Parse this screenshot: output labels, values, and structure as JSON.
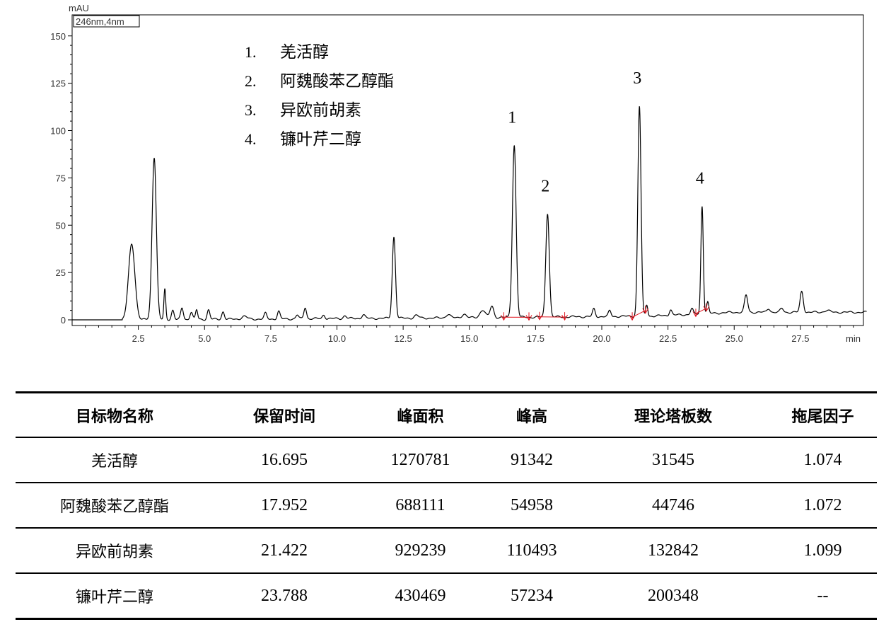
{
  "chart_data": {
    "type": "line",
    "y_unit": "mAU",
    "x_unit": "min",
    "detector_label": "246nm,4nm",
    "xlim": [
      0.0,
      30.0
    ],
    "ylim": [
      -5,
      157
    ],
    "x_ticks": [
      "2.5",
      "5.0",
      "7.5",
      "10.0",
      "12.5",
      "15.0",
      "17.5",
      "20.0",
      "22.5",
      "25.0",
      "27.5"
    ],
    "y_ticks": [
      "0",
      "25",
      "50",
      "75",
      "100",
      "125",
      "150"
    ],
    "baseline": 0,
    "peaks": [
      {
        "t": 2.25,
        "h": 40,
        "w": 0.12
      },
      {
        "t": 3.1,
        "h": 86,
        "w": 0.08
      },
      {
        "t": 3.5,
        "h": 16,
        "w": 0.035
      },
      {
        "t": 3.8,
        "h": 5,
        "w": 0.05
      },
      {
        "t": 4.15,
        "h": 6,
        "w": 0.05
      },
      {
        "t": 4.5,
        "h": 4,
        "w": 0.05
      },
      {
        "t": 4.7,
        "h": 5,
        "w": 0.04
      },
      {
        "t": 5.15,
        "h": 5,
        "w": 0.05
      },
      {
        "t": 5.7,
        "h": 4,
        "w": 0.05
      },
      {
        "t": 6.5,
        "h": 1.5,
        "w": 0.1
      },
      {
        "t": 7.3,
        "h": 3,
        "w": 0.05
      },
      {
        "t": 7.8,
        "h": 4,
        "w": 0.05
      },
      {
        "t": 8.5,
        "h": 2,
        "w": 0.05
      },
      {
        "t": 8.8,
        "h": 6,
        "w": 0.05
      },
      {
        "t": 9.5,
        "h": 2,
        "w": 0.05
      },
      {
        "t": 10.3,
        "h": 1.5,
        "w": 0.06
      },
      {
        "t": 11.0,
        "h": 2,
        "w": 0.06
      },
      {
        "t": 12.15,
        "h": 43,
        "w": 0.06
      },
      {
        "t": 13.0,
        "h": 1.5,
        "w": 0.08
      },
      {
        "t": 14.2,
        "h": 2,
        "w": 0.08
      },
      {
        "t": 14.8,
        "h": 2,
        "w": 0.08
      },
      {
        "t": 15.5,
        "h": 4,
        "w": 0.1
      },
      {
        "t": 15.85,
        "h": 6,
        "w": 0.07
      },
      {
        "t": 16.695,
        "h": 91,
        "w": 0.07
      },
      {
        "t": 17.952,
        "h": 55,
        "w": 0.065
      },
      {
        "t": 19.7,
        "h": 4,
        "w": 0.05
      },
      {
        "t": 20.3,
        "h": 3,
        "w": 0.05
      },
      {
        "t": 21.422,
        "h": 111,
        "w": 0.06
      },
      {
        "t": 21.7,
        "h": 6,
        "w": 0.04
      },
      {
        "t": 22.6,
        "h": 3,
        "w": 0.05
      },
      {
        "t": 23.4,
        "h": 3,
        "w": 0.05
      },
      {
        "t": 23.788,
        "h": 57,
        "w": 0.045
      },
      {
        "t": 24.0,
        "h": 6,
        "w": 0.04
      },
      {
        "t": 25.45,
        "h": 9,
        "w": 0.06
      },
      {
        "t": 26.3,
        "h": 2,
        "w": 0.06
      },
      {
        "t": 26.8,
        "h": 2,
        "w": 0.06
      },
      {
        "t": 27.55,
        "h": 11,
        "w": 0.06
      },
      {
        "t": 28.5,
        "h": 1,
        "w": 0.1
      }
    ],
    "drift": [
      {
        "t": 14.0,
        "y": 1
      },
      {
        "t": 22.0,
        "y": 2
      },
      {
        "t": 25.0,
        "y": 4
      },
      {
        "t": 30.0,
        "y": 4
      }
    ],
    "integration_marks": [
      {
        "from": 16.3,
        "to": 17.25
      },
      {
        "from": 17.65,
        "to": 18.6
      },
      {
        "from": 21.15,
        "to": 21.65
      },
      {
        "from": 23.55,
        "to": 23.95
      }
    ],
    "peak_labels": [
      {
        "text": "1",
        "t": 16.695
      },
      {
        "text": "2",
        "t": 17.952
      },
      {
        "text": "3",
        "t": 21.422
      },
      {
        "text": "4",
        "t": 23.788
      }
    ],
    "legend": [
      {
        "num": "1.",
        "name": "羌活醇"
      },
      {
        "num": "2.",
        "name": "阿魏酸苯乙醇酯"
      },
      {
        "num": "3.",
        "name": "异欧前胡素"
      },
      {
        "num": "4.",
        "name": "镰叶芹二醇"
      }
    ],
    "line_color": "#000000",
    "integration_color": "#e0141e"
  },
  "table": {
    "headers": [
      "目标物名称",
      "保留时间",
      "峰面积",
      "峰高",
      "理论塔板数",
      "拖尾因子"
    ],
    "rows": [
      [
        "羌活醇",
        "16.695",
        "1270781",
        "91342",
        "31545",
        "1.074"
      ],
      [
        "阿魏酸苯乙醇酯",
        "17.952",
        "688111",
        "54958",
        "44746",
        "1.072"
      ],
      [
        "异欧前胡素",
        "21.422",
        "929239",
        "110493",
        "132842",
        "1.099"
      ],
      [
        "镰叶芹二醇",
        "23.788",
        "430469",
        "57234",
        "200348",
        "--"
      ]
    ]
  }
}
